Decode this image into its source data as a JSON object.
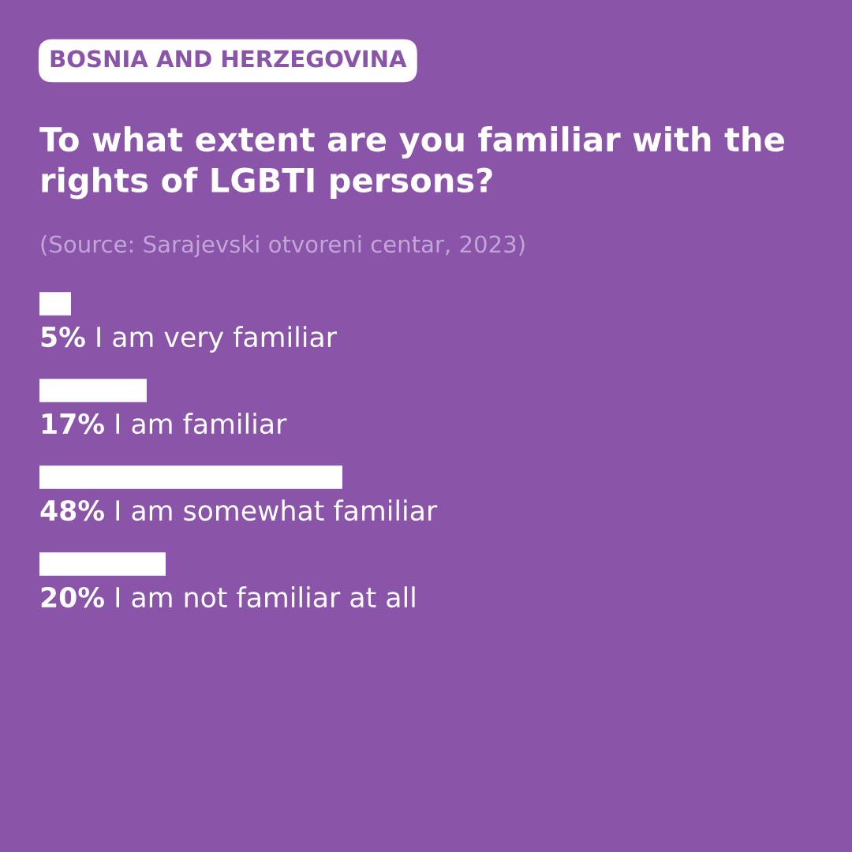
{
  "chart_data": {
    "type": "bar",
    "orientation": "horizontal",
    "title": "To what extent are you familiar with the rights of LGBTI persons?",
    "annotations": [
      "BOSNIA AND HERZEGOVINA",
      "(Source: Sarajevski otvoreni centar, 2023)"
    ],
    "categories": [
      "I am very familiar",
      "I am familiar",
      "I am somewhat familiar",
      "I am not familiar at all"
    ],
    "values": [
      5,
      17,
      48,
      20
    ],
    "value_labels": [
      "5%",
      "17%",
      "48%",
      "20%"
    ],
    "color": "#ffffff",
    "xlim": [
      0,
      128
    ]
  }
}
